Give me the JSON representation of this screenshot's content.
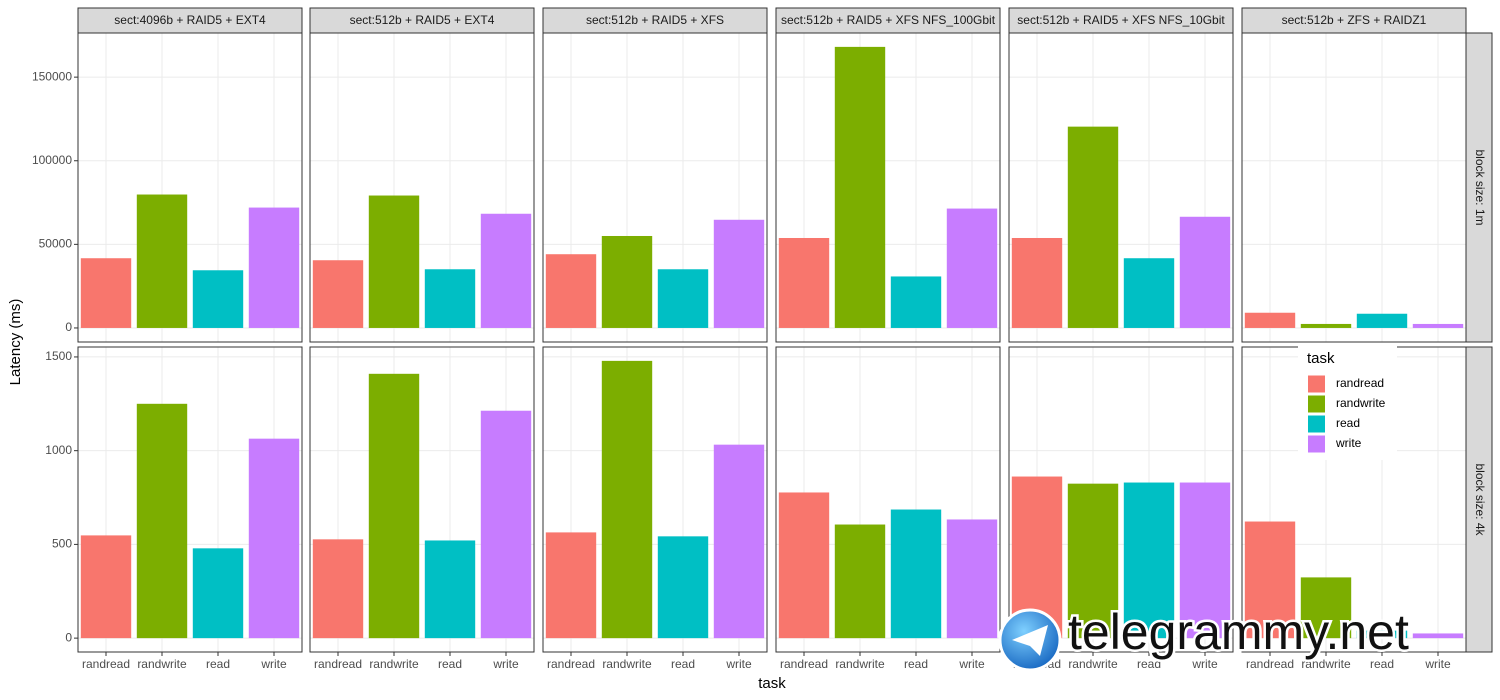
{
  "chart_data": {
    "type": "bar",
    "y_label": "Latency (ms)",
    "x_label": "task",
    "categories": [
      "randread",
      "randwrite",
      "read",
      "write"
    ],
    "colors": [
      "#F8766D",
      "#7CAE00",
      "#00BFC4",
      "#C77CFF"
    ],
    "legend_title": "task",
    "columns": [
      "sect:4096b + RAID5 + EXT4",
      "sect:512b + RAID5 + EXT4",
      "sect:512b + RAID5 + XFS",
      "sect:512b + RAID5 + XFS NFS_100Gbit",
      "sect:512b + RAID5 + XFS NFS_10Gbit",
      "sect:512b + ZFS + RAIDZ1"
    ],
    "rows": [
      {
        "label": "block size: 1m",
        "ylim": [
          -8400,
          176400
        ],
        "yticks": [
          0,
          50000,
          100000,
          150000
        ],
        "values": [
          [
            41700,
            79800,
            34500,
            72000
          ],
          [
            40500,
            79200,
            35100,
            68300
          ],
          [
            44100,
            55000,
            35100,
            64700
          ],
          [
            53800,
            168100,
            30800,
            71400
          ],
          [
            53800,
            120400,
            41700,
            66500
          ],
          [
            9100,
            2400,
            8500,
            2400
          ]
        ]
      },
      {
        "label": "block size: 4k",
        "ylim": [
          -74,
          1553
        ],
        "yticks": [
          0,
          500,
          1000,
          1500
        ],
        "values": [
          [
            548,
            1250,
            479,
            1064
          ],
          [
            527,
            1410,
            521,
            1213
          ],
          [
            564,
            1479,
            543,
            1032
          ],
          [
            777,
            606,
            686,
            633
          ],
          [
            862,
            824,
            830,
            830
          ],
          [
            622,
            324,
            40,
            25
          ]
        ]
      }
    ],
    "watermark": "telegrammy.net"
  }
}
